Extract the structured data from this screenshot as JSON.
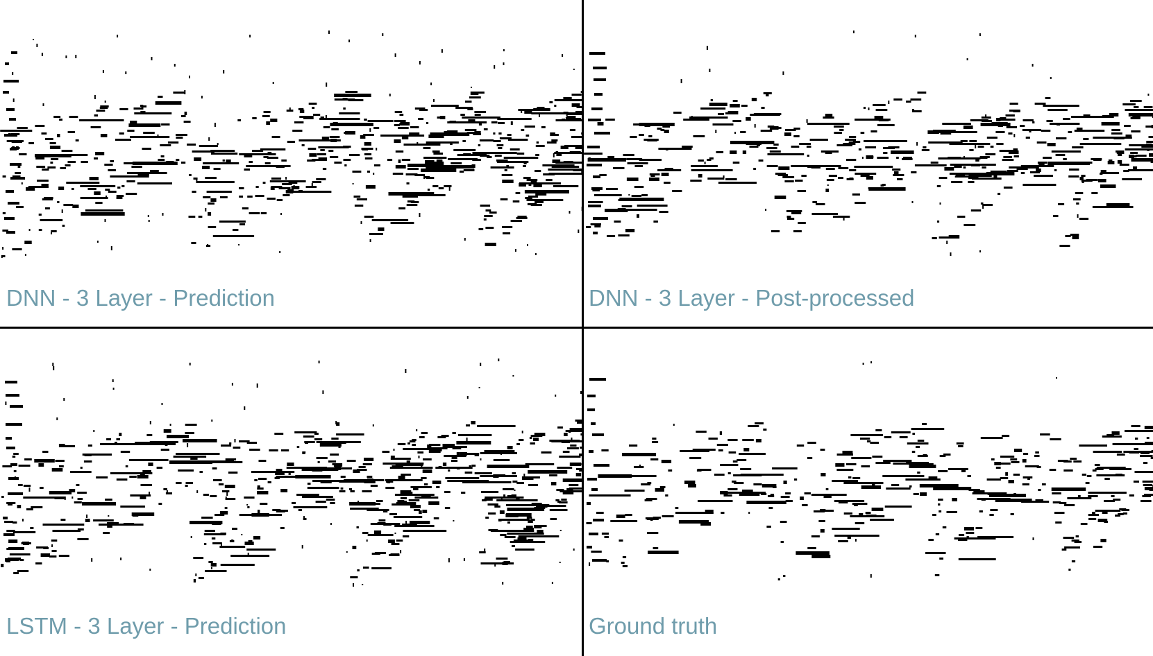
{
  "colors": {
    "label": "#6f9cab",
    "notes": "#000000",
    "background": "#ffffff",
    "divider": "#000000"
  },
  "panels": [
    {
      "label": "DNN - 3 Layer - Prediction",
      "seed": 11,
      "noise": "high"
    },
    {
      "label": "DNN - 3 Layer - Post-processed",
      "seed": 29,
      "noise": "medium"
    },
    {
      "label": "LSTM - 3 Layer - Prediction",
      "seed": 47,
      "noise": "high"
    },
    {
      "label": "Ground truth",
      "seed": 73,
      "noise": "low"
    }
  ]
}
